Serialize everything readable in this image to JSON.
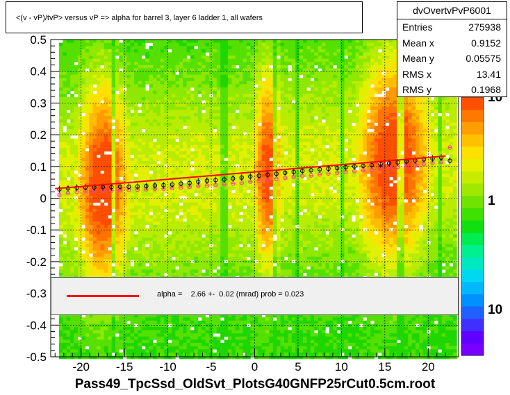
{
  "title": "<(v - vP)/tvP> versus   vP => alpha for barrel 3, layer 6 ladder 1, all wafers",
  "stats": {
    "name": "dvOvertvPvP6001",
    "rows": [
      {
        "label": "Entries",
        "value": "275938"
      },
      {
        "label": "Mean x",
        "value": "0.9152"
      },
      {
        "label": "Mean y",
        "value": "0.05575"
      },
      {
        "label": "RMS x",
        "value": "13.41"
      },
      {
        "label": "RMS y",
        "value": "0.1968"
      }
    ]
  },
  "fit": {
    "text": "alpha =    2.66 +-  0.02 (mrad) prob = 0.023",
    "line_color": "#ff0000"
  },
  "file_label": "Pass49_TpcSsd_OldSvt_PlotsG40GNFP25rCut0.5cm.root",
  "chart_data": {
    "type": "heatmap",
    "xlim": [
      -23.5,
      23.5
    ],
    "ylim": [
      -0.5,
      0.5
    ],
    "x_ticks": [
      -20,
      -15,
      -10,
      -5,
      0,
      5,
      10,
      15,
      20
    ],
    "y_ticks": [
      -0.5,
      -0.4,
      -0.3,
      -0.2,
      -0.1,
      0,
      0.1,
      0.2,
      0.3,
      0.4,
      0.5
    ],
    "x_tick_labels": [
      "-20",
      "-15",
      "-10",
      "-5",
      "0",
      "5",
      "10",
      "15",
      "20"
    ],
    "y_tick_labels": [
      "-0.5",
      "-0.4",
      "-0.3",
      "-0.2",
      "-0.1",
      "0",
      "0.1",
      "0.2",
      "0.3",
      "0.4",
      "0.5"
    ],
    "color_scale": {
      "labels": [
        {
          "text": "10",
          "value": 10
        },
        {
          "text": "1",
          "value": 1
        },
        {
          "text": "10",
          "value": 10
        }
      ],
      "log": true
    },
    "grid": true,
    "profile_black": {
      "x": [
        -22.5,
        -21.5,
        -20.5,
        -19.5,
        -18.5,
        -17.5,
        -16.5,
        -15.5,
        -14.5,
        -13.5,
        -12.5,
        -11.5,
        -10.5,
        -9.5,
        -8.5,
        -7.5,
        -6.5,
        -5.5,
        -4.5,
        -3.5,
        -2.5,
        -1.5,
        -0.5,
        0.5,
        1.5,
        2.5,
        3.5,
        4.5,
        5.5,
        6.5,
        7.5,
        8.5,
        9.5,
        10.5,
        11.5,
        12.5,
        13.5,
        14.5,
        15.5,
        16.5,
        17.5,
        18.5,
        19.5,
        20.5,
        21.5,
        22.5
      ],
      "y": [
        0.028,
        0.031,
        0.033,
        0.034,
        0.034,
        0.035,
        0.035,
        0.036,
        0.036,
        0.037,
        0.038,
        0.04,
        0.041,
        0.043,
        0.046,
        0.048,
        0.052,
        0.055,
        0.057,
        0.059,
        0.062,
        0.065,
        0.068,
        0.071,
        0.074,
        0.077,
        0.08,
        0.083,
        0.086,
        0.088,
        0.091,
        0.093,
        0.095,
        0.098,
        0.1,
        0.102,
        0.104,
        0.107,
        0.11,
        0.113,
        0.116,
        0.119,
        0.122,
        0.125,
        0.128,
        0.118
      ]
    },
    "profile_magenta": {
      "x": [
        -22.5,
        -21.5,
        -20.5,
        -19.5,
        -18.5,
        -17.5,
        -16.5,
        -15.5,
        -14.5,
        -13.5,
        -12.5,
        -11.5,
        -10.5,
        -9.5,
        -8.5,
        -7.5,
        -6.5,
        -5.5,
        -4.5,
        -3.5,
        -2.5,
        -1.5,
        -0.5,
        0.5,
        1.5,
        2.5,
        3.5,
        4.5,
        5.5,
        6.5,
        7.5,
        8.5,
        9.5,
        10.5,
        11.5,
        12.5,
        13.5,
        14.5,
        15.5,
        16.5,
        17.5,
        18.5,
        19.5,
        20.5,
        21.5,
        22.5
      ],
      "y": [
        0.01,
        0.016,
        0.02,
        0.022,
        0.023,
        0.024,
        0.024,
        0.025,
        0.026,
        0.027,
        0.028,
        0.029,
        0.03,
        0.032,
        0.034,
        0.036,
        0.038,
        0.04,
        0.042,
        0.044,
        0.046,
        0.049,
        0.052,
        0.055,
        0.058,
        0.061,
        0.064,
        0.067,
        0.07,
        0.072,
        0.075,
        0.078,
        0.08,
        0.083,
        0.085,
        0.088,
        0.09,
        0.093,
        0.096,
        0.099,
        0.102,
        0.105,
        0.108,
        0.111,
        0.114,
        0.16
      ]
    },
    "fit_line": {
      "x": [
        -23,
        22
      ],
      "y": [
        0.03,
        0.133
      ],
      "slope_mrad": 2.66
    }
  }
}
